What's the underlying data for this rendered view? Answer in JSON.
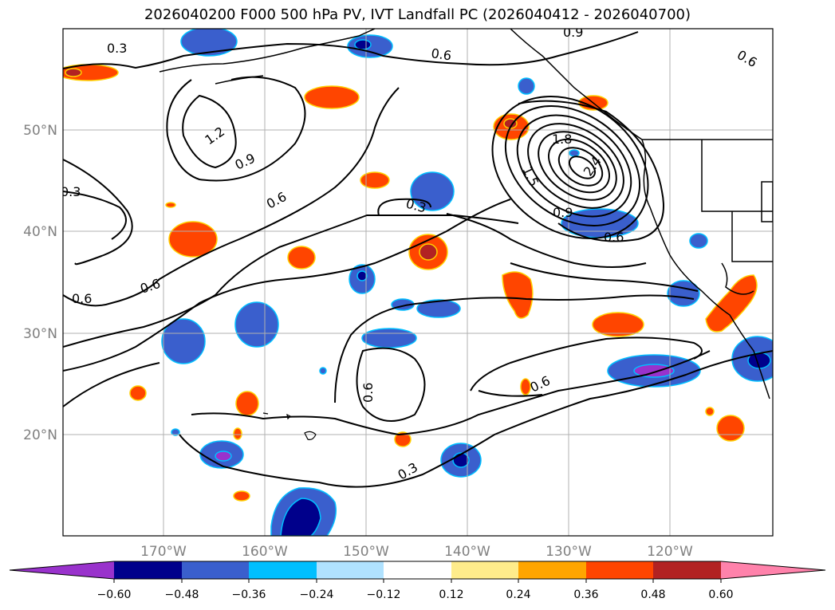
{
  "title": "2026040200 F000 500 hPa PV, IVT Landfall PC (2026040412 - 2026040700)",
  "lat_labels": [
    "50°N",
    "40°N",
    "30°N",
    "20°N"
  ],
  "lon_labels": [
    "170°W",
    "160°W",
    "150°W",
    "140°W",
    "130°W",
    "120°W"
  ],
  "contour_labels": [
    "0.3",
    "0.6",
    "1.2",
    "0.9",
    "0.6",
    "0.3",
    "0.6",
    "0.6",
    "0.9",
    "1.8",
    "1.5",
    "2.4",
    "0.6",
    "0.3",
    "0.6",
    "0.6",
    "0.3",
    "0.6",
    "0.9"
  ],
  "colorbar": {
    "ticks": [
      "−0.60",
      "−0.48",
      "−0.36",
      "−0.24",
      "−0.12",
      "0.12",
      "0.24",
      "0.36",
      "0.48",
      "0.60"
    ],
    "colors": [
      "#9932cc",
      "#00008b",
      "#3a5fcd",
      "#00bfff",
      "#b0e2ff",
      "#ffffff",
      "#ffec8b",
      "#ffa500",
      "#ff4500",
      "#b22222",
      "#ff82ab"
    ]
  }
}
